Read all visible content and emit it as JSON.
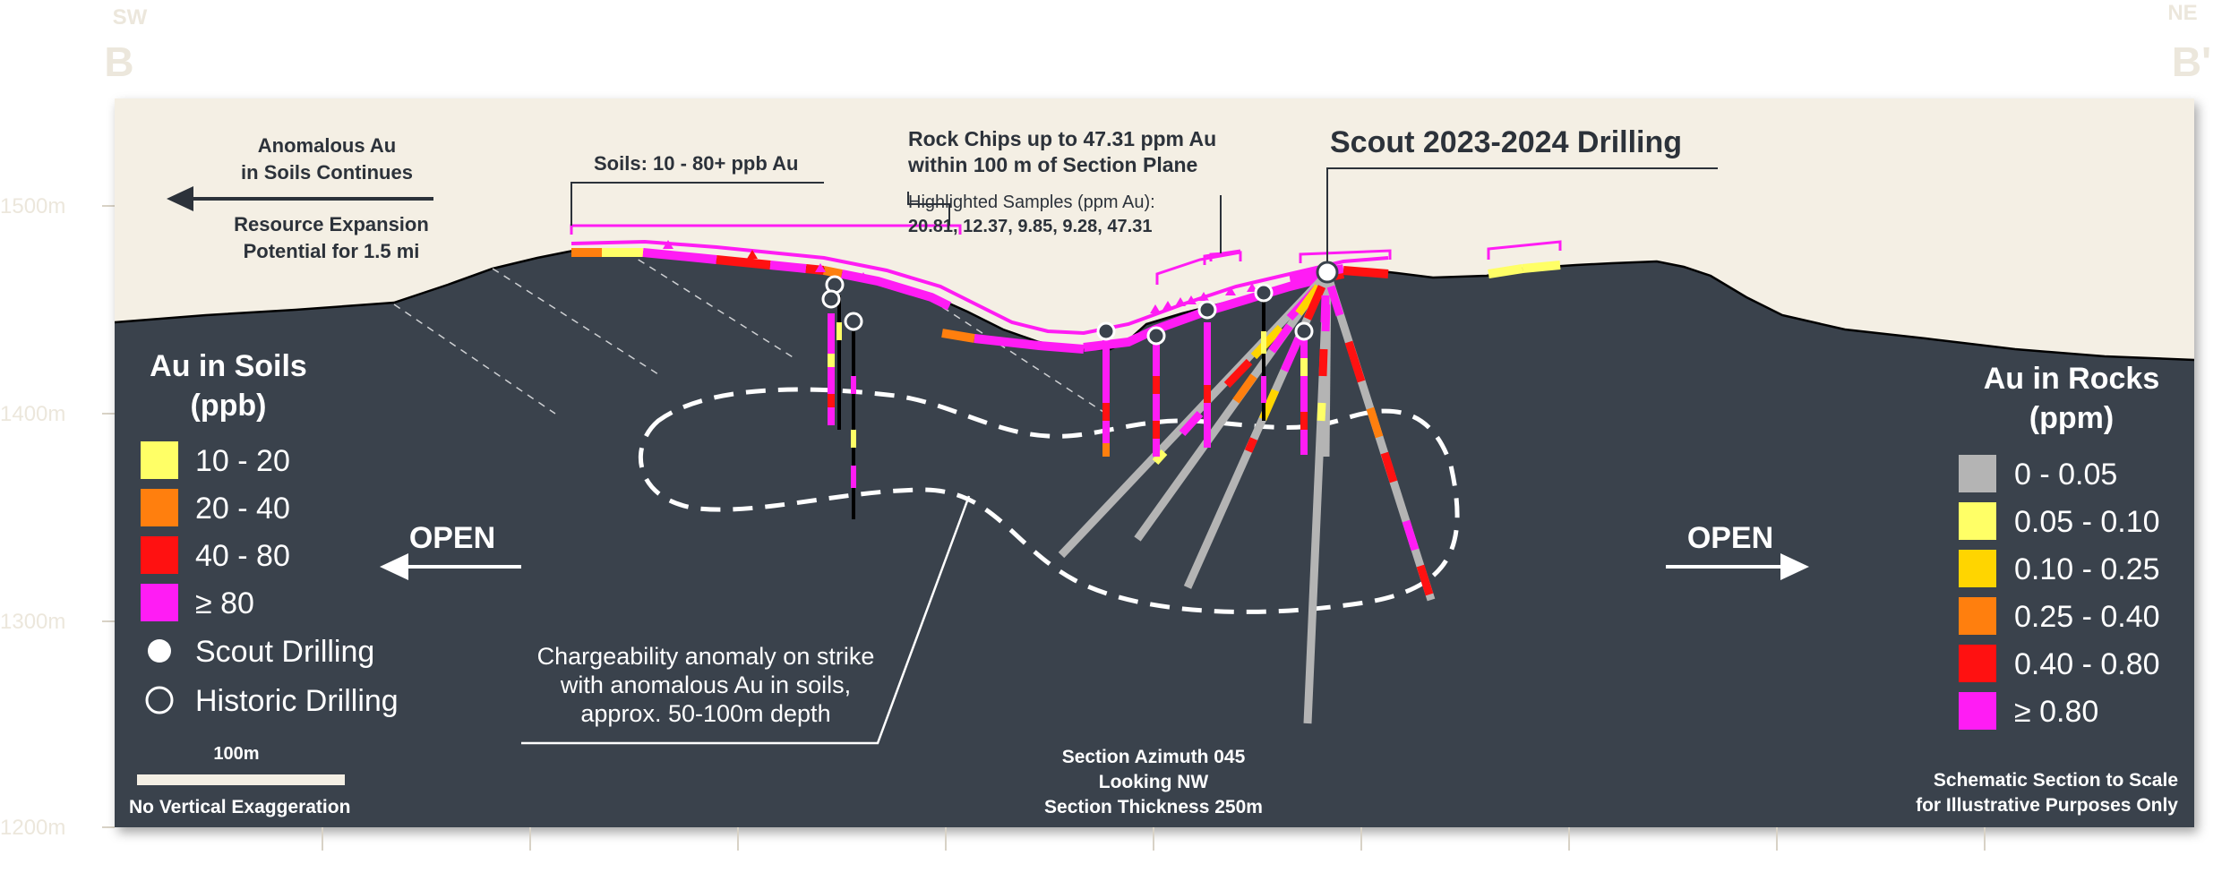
{
  "colors": {
    "sky": "#f4efe4",
    "ground": "#3a424c",
    "soil_10_20": "#ffff66",
    "soil_20_40": "#ff7f0e",
    "soil_40_80": "#ff1111",
    "soil_80": "#ff1cf4",
    "rock_0_005": "#b4b4b4",
    "rock_005_010": "#ffff66",
    "rock_010_025": "#ffd500",
    "rock_025_040": "#ff7f0e",
    "rock_040_080": "#ff1111",
    "rock_080": "#ff1cf4",
    "text_dark": "#2c323a",
    "text_light": "#ffffff",
    "axis": "#cfc9bc"
  },
  "header": {
    "left_dir": "SW",
    "left_label": "B",
    "right_dir": "NE",
    "right_label": "B'"
  },
  "elevation_axis": [
    {
      "label": "1500m",
      "elev": 1500
    },
    {
      "label": "1400m",
      "elev": 1400
    },
    {
      "label": "1300m",
      "elev": 1300
    },
    {
      "label": "1200m",
      "elev": 1200
    }
  ],
  "annotations": {
    "anomalous_l1": "Anomalous Au",
    "anomalous_l2": "in Soils Continues",
    "expansion_l1": "Resource Expansion",
    "expansion_l2": "Potential for 1.5 mi",
    "soils": "Soils: 10 - 80+ ppb Au",
    "rock_l1": "Rock Chips up to 47.31 ppm Au",
    "rock_l2": "within 100 m of Section Plane",
    "samples_title": "Highlighted Samples (ppm Au):",
    "samples_values": "20.81, 12.37, 9.85, 9.28, 47.31",
    "scout": "Scout 2023-2024 Drilling",
    "open_left": "OPEN",
    "open_right": "OPEN",
    "charge_l1": "Chargeability anomaly on strike",
    "charge_l2": "with anomalous Au in soils,",
    "charge_l3": "approx. 50-100m depth",
    "scale_label": "100m",
    "no_vert": "No Vertical Exaggeration",
    "azimuth_l1": "Section Azimuth 045",
    "azimuth_l2": "Looking NW",
    "azimuth_l3": "Section Thickness 250m",
    "schematic_l1": "Schematic Section to Scale",
    "schematic_l2": "for Illustrative Purposes Only"
  },
  "soil_legend": {
    "title_l1": "Au in Soils",
    "title_l2": "(ppb)",
    "items": [
      {
        "label": "10 - 20",
        "color": "#ffff66"
      },
      {
        "label": "20 - 40",
        "color": "#ff7f0e"
      },
      {
        "label": "40 - 80",
        "color": "#ff1111"
      },
      {
        "label": "≥ 80",
        "color": "#ff1cf4"
      }
    ],
    "scout_label": "Scout Drilling",
    "historic_label": "Historic Drilling"
  },
  "rock_legend": {
    "title_l1": "Au in Rocks",
    "title_l2": "(ppm)",
    "items": [
      {
        "label": "0 - 0.05",
        "color": "#b4b4b4"
      },
      {
        "label": "0.05 - 0.10",
        "color": "#ffff66"
      },
      {
        "label": "0.10 - 0.25",
        "color": "#ffd500"
      },
      {
        "label": "0.25 - 0.40",
        "color": "#ff7f0e"
      },
      {
        "label": "0.40 - 0.80",
        "color": "#ff1111"
      },
      {
        "label": "≥ 0.80",
        "color": "#ff1cf4"
      }
    ]
  }
}
